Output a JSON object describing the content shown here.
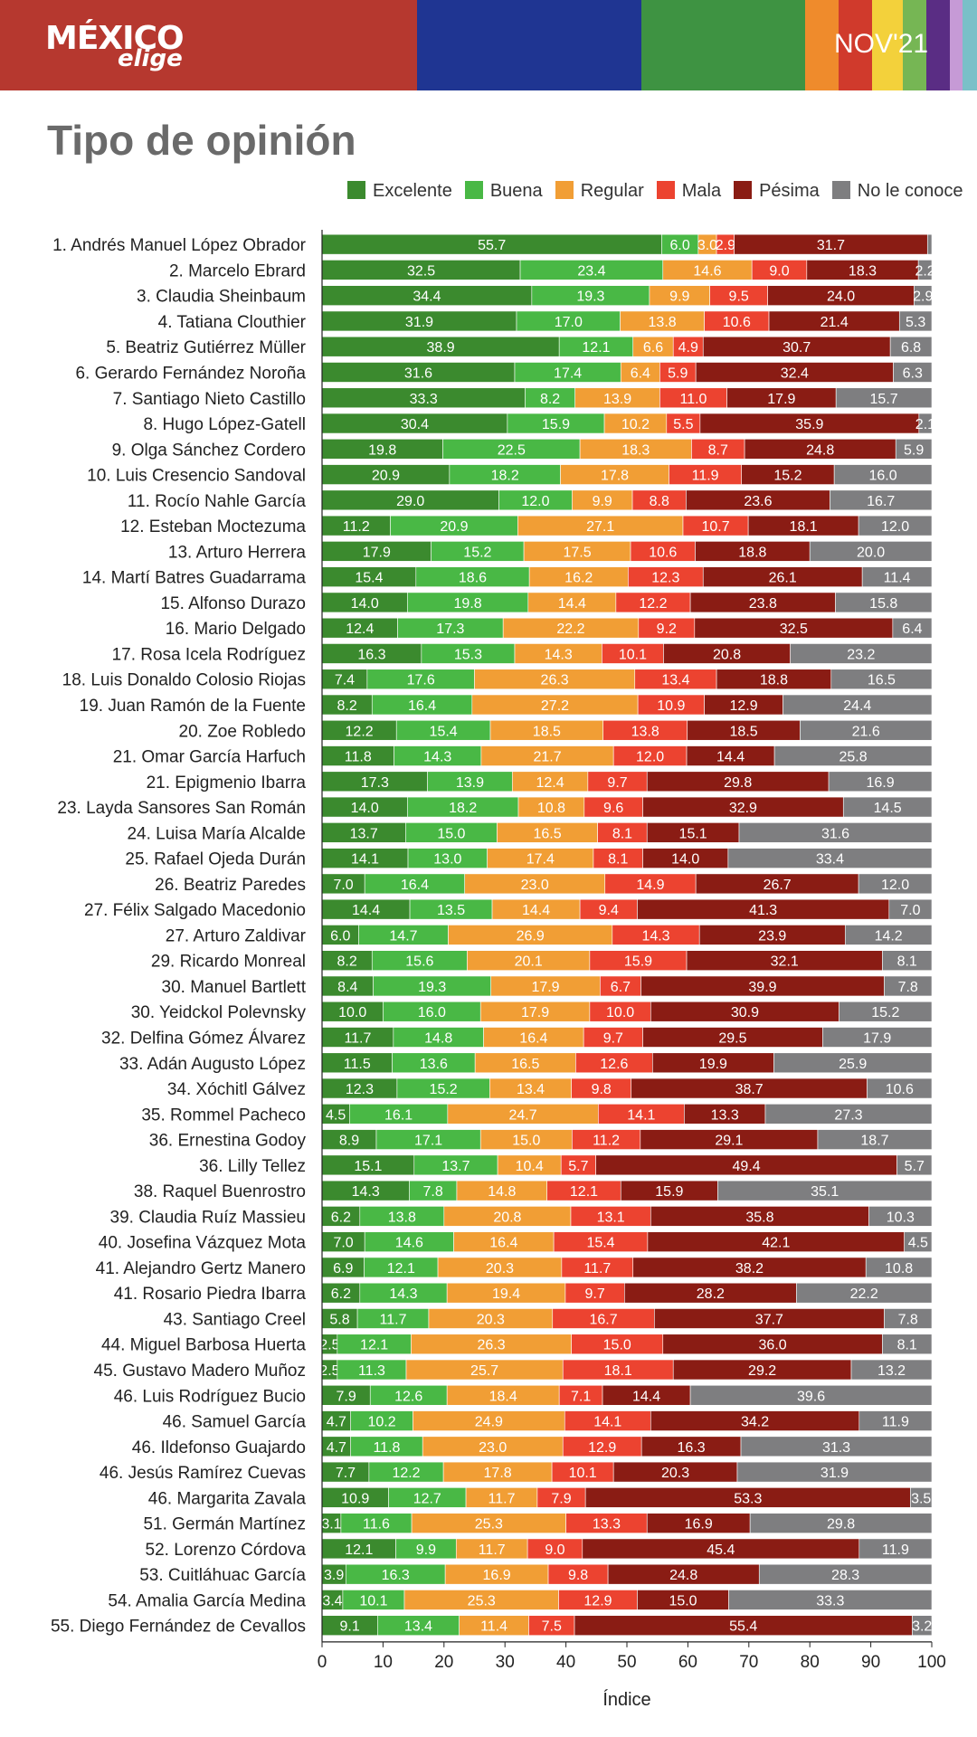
{
  "header": {
    "logo_main": "MÉXICO",
    "logo_sub": "elige",
    "period": "NOV'21"
  },
  "colors": {
    "brand_red": "#b6382f",
    "stripes": [
      "#b6382f",
      "#1f3592",
      "#3e9342",
      "#ef8b2c",
      "#d03a2c",
      "#f3d13b",
      "#76b654",
      "#5a2d84",
      "#c69ad6",
      "#7ac0c8"
    ]
  },
  "title": "Tipo de opinión",
  "chart_data": {
    "type": "bar",
    "orientation": "horizontal",
    "stacked": true,
    "xlabel": "Índice",
    "xlim": [
      0,
      100
    ],
    "xticks": [
      0,
      10,
      20,
      30,
      40,
      50,
      60,
      70,
      80,
      90,
      100
    ],
    "legend_position": "top",
    "series": [
      {
        "name": "Excelente",
        "color": "#3b8a2e"
      },
      {
        "name": "Buena",
        "color": "#49b845"
      },
      {
        "name": "Regular",
        "color": "#f19e35"
      },
      {
        "name": "Mala",
        "color": "#ec4330"
      },
      {
        "name": "Pésima",
        "color": "#8a1c14"
      },
      {
        "name": "No le conoce",
        "color": "#7e7e80"
      }
    ],
    "categories": [
      "1. Andrés Manuel López Obrador",
      "2. Marcelo Ebrard",
      "3. Claudia Sheinbaum",
      "4. Tatiana Clouthier",
      "5. Beatriz Gutiérrez Müller",
      "6. Gerardo Fernández Noroña",
      "7. Santiago Nieto Castillo",
      "8. Hugo López-Gatell",
      "9. Olga Sánchez Cordero",
      "10. Luis Cresencio Sandoval",
      "11. Rocío Nahle García",
      "12. Esteban Moctezuma",
      "13. Arturo Herrera",
      "14. Martí Batres Guadarrama",
      "15. Alfonso Durazo",
      "16. Mario Delgado",
      "17. Rosa Icela Rodríguez",
      "18. Luis Donaldo Colosio Riojas",
      "19. Juan Ramón de la Fuente",
      "20. Zoe Robledo",
      "21. Omar García Harfuch",
      "21. Epigmenio Ibarra",
      "23. Layda Sansores San Román",
      "24. Luisa María Alcalde",
      "25. Rafael Ojeda Durán",
      "26. Beatriz Paredes",
      "27. Félix Salgado Macedonio",
      "27. Arturo Zaldivar",
      "29. Ricardo Monreal",
      "30. Manuel Bartlett",
      "30. Yeidckol Polevnsky",
      "32. Delfina Gómez Álvarez",
      "33. Adán Augusto López",
      "34. Xóchitl Gálvez",
      "35. Rommel Pacheco",
      "36. Ernestina Godoy",
      "36. Lilly Tellez",
      "38. Raquel Buenrostro",
      "39. Claudia Ruíz Massieu",
      "40. Josefina Vázquez Mota",
      "41. Alejandro Gertz Manero",
      "41. Rosario Piedra Ibarra",
      "43. Santiago Creel",
      "44. Miguel Barbosa Huerta",
      "45. Gustavo Madero Muñoz",
      "46. Luis Rodríguez Bucio",
      "46. Samuel García",
      "46. Ildefonso Guajardo",
      "46. Jesús Ramírez Cuevas",
      "46. Margarita Zavala",
      "51. Germán Martínez",
      "52. Lorenzo Córdova",
      "53. Cuitláhuac García",
      "54. Amalia García Medina",
      "55. Diego Fernández de Cevallos"
    ],
    "rows": [
      [
        55.7,
        6.0,
        3.0,
        2.9,
        31.7,
        0.7
      ],
      [
        32.5,
        23.4,
        14.6,
        9.0,
        18.3,
        2.2
      ],
      [
        34.4,
        19.3,
        9.9,
        9.5,
        24.0,
        2.9
      ],
      [
        31.9,
        17.0,
        13.8,
        10.6,
        21.4,
        5.3
      ],
      [
        38.9,
        12.1,
        6.6,
        4.9,
        30.7,
        6.8
      ],
      [
        31.6,
        17.4,
        6.4,
        5.9,
        32.4,
        6.3
      ],
      [
        33.3,
        8.2,
        13.9,
        11.0,
        17.9,
        15.7
      ],
      [
        30.4,
        15.9,
        10.2,
        5.5,
        35.9,
        2.1
      ],
      [
        19.8,
        22.5,
        18.3,
        8.7,
        24.8,
        5.9
      ],
      [
        20.9,
        18.2,
        17.8,
        11.9,
        15.2,
        16.0
      ],
      [
        29.0,
        12.0,
        9.9,
        8.8,
        23.6,
        16.7
      ],
      [
        11.2,
        20.9,
        27.1,
        10.7,
        18.1,
        12.0
      ],
      [
        17.9,
        15.2,
        17.5,
        10.6,
        18.8,
        20.0
      ],
      [
        15.4,
        18.6,
        16.2,
        12.3,
        26.1,
        11.4
      ],
      [
        14.0,
        19.8,
        14.4,
        12.2,
        23.8,
        15.8
      ],
      [
        12.4,
        17.3,
        22.2,
        9.2,
        32.5,
        6.4
      ],
      [
        16.3,
        15.3,
        14.3,
        10.1,
        20.8,
        23.2
      ],
      [
        7.4,
        17.6,
        26.3,
        13.4,
        18.8,
        16.5
      ],
      [
        8.2,
        16.4,
        27.2,
        10.9,
        12.9,
        24.4
      ],
      [
        12.2,
        15.4,
        18.5,
        13.8,
        18.5,
        21.6
      ],
      [
        11.8,
        14.3,
        21.7,
        12.0,
        14.4,
        25.8
      ],
      [
        17.3,
        13.9,
        12.4,
        9.7,
        29.8,
        16.9
      ],
      [
        14.0,
        18.2,
        10.8,
        9.6,
        32.9,
        14.5
      ],
      [
        13.7,
        15.0,
        16.5,
        8.1,
        15.1,
        31.6
      ],
      [
        14.1,
        13.0,
        17.4,
        8.1,
        14.0,
        33.4
      ],
      [
        7.0,
        16.4,
        23.0,
        14.9,
        26.7,
        12.0
      ],
      [
        14.4,
        13.5,
        14.4,
        9.4,
        41.3,
        7.0
      ],
      [
        6.0,
        14.7,
        26.9,
        14.3,
        23.9,
        14.2
      ],
      [
        8.2,
        15.6,
        20.1,
        15.9,
        32.1,
        8.1
      ],
      [
        8.4,
        19.3,
        17.9,
        6.7,
        39.9,
        7.8
      ],
      [
        10.0,
        16.0,
        17.9,
        10.0,
        30.9,
        15.2
      ],
      [
        11.7,
        14.8,
        16.4,
        9.7,
        29.5,
        17.9
      ],
      [
        11.5,
        13.6,
        16.5,
        12.6,
        19.9,
        25.9
      ],
      [
        12.3,
        15.2,
        13.4,
        9.8,
        38.7,
        10.6
      ],
      [
        4.5,
        16.1,
        24.7,
        14.1,
        13.3,
        27.3
      ],
      [
        8.9,
        17.1,
        15.0,
        11.2,
        29.1,
        18.7
      ],
      [
        15.1,
        13.7,
        10.4,
        5.7,
        49.4,
        5.7
      ],
      [
        14.3,
        7.8,
        14.8,
        12.1,
        15.9,
        35.1
      ],
      [
        6.2,
        13.8,
        20.8,
        13.1,
        35.8,
        10.3
      ],
      [
        7.0,
        14.6,
        16.4,
        15.4,
        42.1,
        4.5
      ],
      [
        6.9,
        12.1,
        20.3,
        11.7,
        38.2,
        10.8
      ],
      [
        6.2,
        14.3,
        19.4,
        9.7,
        28.2,
        22.2
      ],
      [
        5.8,
        11.7,
        20.3,
        16.7,
        37.7,
        7.8
      ],
      [
        2.5,
        12.1,
        26.3,
        15.0,
        36.0,
        8.1
      ],
      [
        2.5,
        11.3,
        25.7,
        18.1,
        29.2,
        13.2
      ],
      [
        7.9,
        12.6,
        18.4,
        7.1,
        14.4,
        39.6
      ],
      [
        4.7,
        10.2,
        24.9,
        14.1,
        34.2,
        11.9
      ],
      [
        4.7,
        11.8,
        23.0,
        12.9,
        16.3,
        31.3
      ],
      [
        7.7,
        12.2,
        17.8,
        10.1,
        20.3,
        31.9
      ],
      [
        10.9,
        12.7,
        11.7,
        7.9,
        53.3,
        3.5
      ],
      [
        3.1,
        11.6,
        25.3,
        13.3,
        16.9,
        29.8
      ],
      [
        12.1,
        9.9,
        11.7,
        9.0,
        45.4,
        11.9
      ],
      [
        3.9,
        16.3,
        16.9,
        9.8,
        24.8,
        28.3
      ],
      [
        3.4,
        10.1,
        25.3,
        12.9,
        15.0,
        33.3
      ],
      [
        9.1,
        13.4,
        11.4,
        7.5,
        55.4,
        3.2
      ]
    ]
  }
}
